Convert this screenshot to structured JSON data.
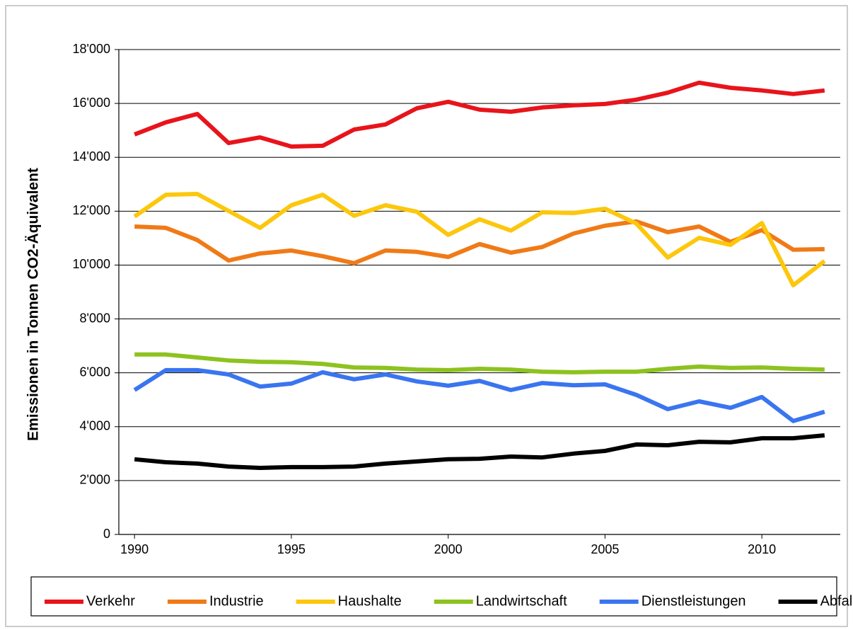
{
  "chart_data": {
    "type": "line",
    "y_label": "Emissionen in Tonnen CO2-Äquivalent",
    "x": [
      1990,
      1991,
      1992,
      1993,
      1994,
      1995,
      1996,
      1997,
      1998,
      1999,
      2000,
      2001,
      2002,
      2003,
      2004,
      2005,
      2006,
      2007,
      2008,
      2009,
      2010,
      2011,
      2012
    ],
    "series": [
      {
        "name": "Verkehr",
        "color": "#e8141b",
        "values": [
          14850,
          15300,
          15610,
          14530,
          14740,
          14400,
          14430,
          15030,
          15220,
          15820,
          16060,
          15770,
          15690,
          15850,
          15930,
          15980,
          16140,
          16400,
          16770,
          16580,
          16480,
          16350,
          16480
        ]
      },
      {
        "name": "Industrie",
        "color": "#f07a17",
        "values": [
          11430,
          11380,
          10930,
          10170,
          10430,
          10540,
          10330,
          10070,
          10540,
          10490,
          10300,
          10780,
          10460,
          10670,
          11170,
          11460,
          11620,
          11220,
          11430,
          10860,
          11300,
          10570,
          10590
        ]
      },
      {
        "name": "Haushalte",
        "color": "#fcc70d",
        "values": [
          11800,
          12610,
          12640,
          12010,
          11380,
          12220,
          12610,
          11830,
          12220,
          11980,
          11120,
          11700,
          11280,
          11960,
          11930,
          12090,
          11540,
          10280,
          11010,
          10750,
          11560,
          9250,
          10150
        ]
      },
      {
        "name": "Landwirtschaft",
        "color": "#8dc21f",
        "values": [
          6680,
          6680,
          6570,
          6460,
          6410,
          6390,
          6330,
          6200,
          6180,
          6120,
          6100,
          6150,
          6120,
          6040,
          6020,
          6040,
          6040,
          6150,
          6230,
          6180,
          6200,
          6150,
          6120
        ]
      },
      {
        "name": "Dienstleistungen",
        "color": "#3a75f0",
        "values": [
          5360,
          6100,
          6100,
          5940,
          5490,
          5600,
          6020,
          5760,
          5940,
          5680,
          5520,
          5700,
          5360,
          5620,
          5540,
          5570,
          5180,
          4650,
          4940,
          4700,
          5100,
          4210,
          4550
        ]
      },
      {
        "name": "Abfall",
        "color": "#000000",
        "values": [
          2790,
          2680,
          2630,
          2520,
          2470,
          2500,
          2500,
          2520,
          2630,
          2710,
          2790,
          2810,
          2890,
          2860,
          3000,
          3100,
          3340,
          3310,
          3440,
          3420,
          3570,
          3570,
          3680
        ]
      }
    ],
    "xlim": [
      1989.5,
      2012.5
    ],
    "xticks": [
      1990,
      1995,
      2000,
      2005,
      2010
    ],
    "ylim": [
      0,
      18000
    ],
    "yticks": [
      0,
      {
        "value": 2000,
        "label": "2'000"
      },
      {
        "value": 4000,
        "label": "4'000"
      },
      {
        "value": 6000,
        "label": "6'000"
      },
      {
        "value": 8000,
        "label": "8'000"
      },
      {
        "value": 10000,
        "label": "10'000"
      },
      {
        "value": 12000,
        "label": "12'000"
      },
      {
        "value": 14000,
        "label": "14'000"
      },
      {
        "value": 16000,
        "label": "16'000"
      },
      {
        "value": 18000,
        "label": "18'000"
      }
    ],
    "grid": true,
    "legend": "bottom"
  }
}
